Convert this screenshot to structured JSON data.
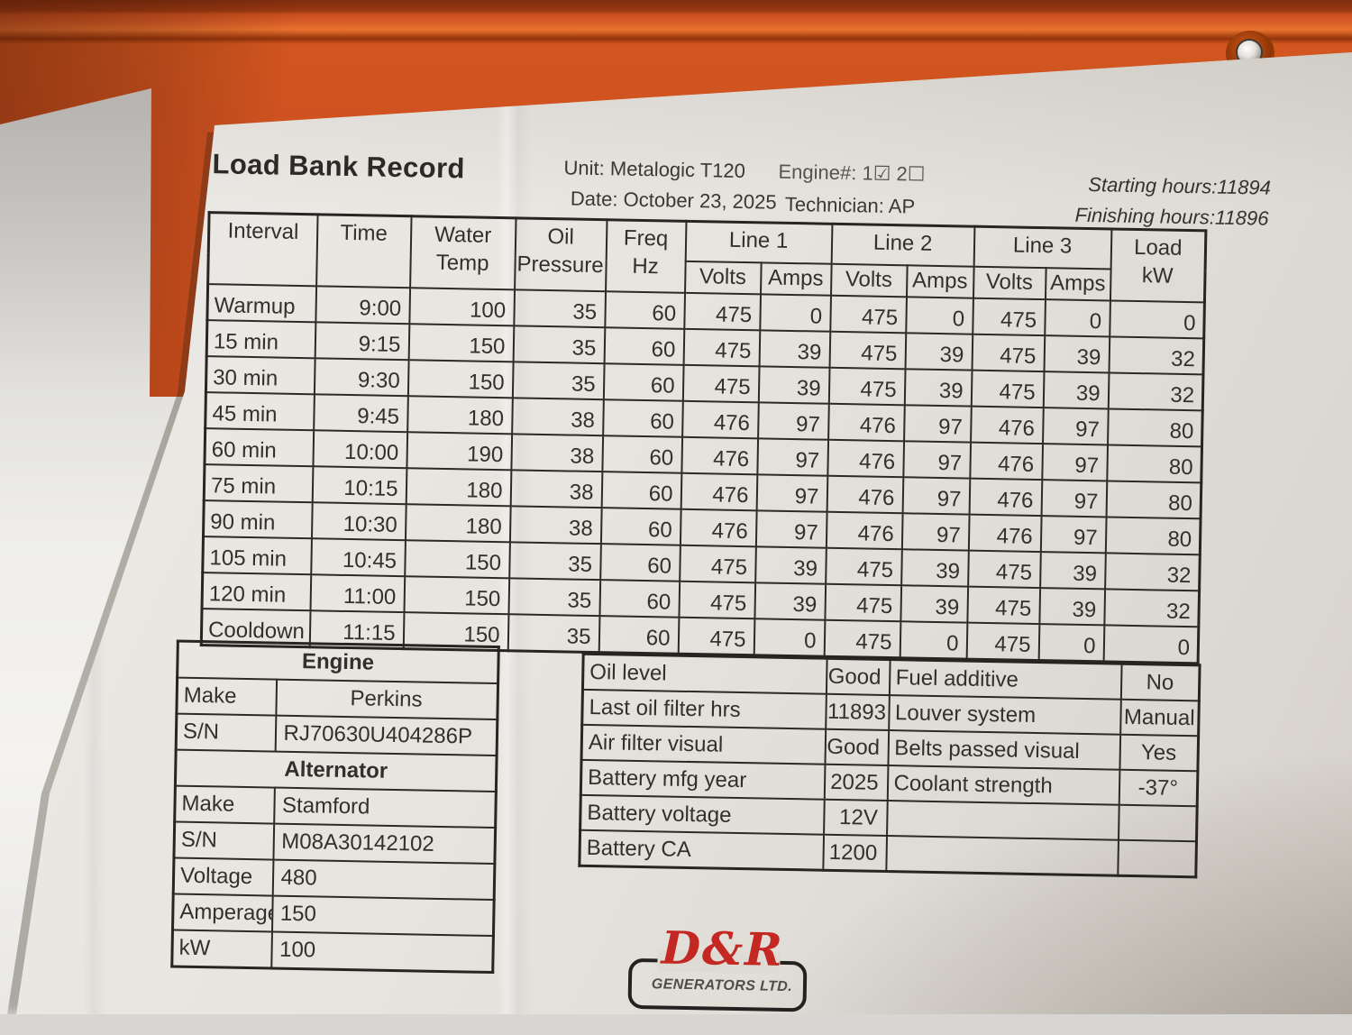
{
  "header": {
    "title": "Load Bank Record",
    "unit": {
      "label": "Unit:",
      "value": "Metalogic T120"
    },
    "engine_no": {
      "label": "Engine#:",
      "value": "1☑ 2☐"
    },
    "date": {
      "label": "Date:",
      "value": "October 23, 2025"
    },
    "technician": {
      "label": "Technician:",
      "value": "AP"
    },
    "starting_hours": "Starting hours:11894",
    "finishing_hours": "Finishing hours:11896"
  },
  "load_table": {
    "headers": {
      "interval": "Interval",
      "time": "Time",
      "water_temp": "Water\nTemp",
      "oil_pressure": "Oil\nPressure",
      "freq_hz": "Freq\nHz",
      "line1": "Line 1",
      "line2": "Line 2",
      "line3": "Line 3",
      "volts": "Volts",
      "amps": "Amps",
      "load_kw": "Load\nkW"
    },
    "rows": [
      [
        "Warmup",
        "9:00",
        "100",
        "35",
        "60",
        "475",
        "0",
        "475",
        "0",
        "475",
        "0",
        "0"
      ],
      [
        "15 min",
        "9:15",
        "150",
        "35",
        "60",
        "475",
        "39",
        "475",
        "39",
        "475",
        "39",
        "32"
      ],
      [
        "30 min",
        "9:30",
        "150",
        "35",
        "60",
        "475",
        "39",
        "475",
        "39",
        "475",
        "39",
        "32"
      ],
      [
        "45 min",
        "9:45",
        "180",
        "38",
        "60",
        "476",
        "97",
        "476",
        "97",
        "476",
        "97",
        "80"
      ],
      [
        "60 min",
        "10:00",
        "190",
        "38",
        "60",
        "476",
        "97",
        "476",
        "97",
        "476",
        "97",
        "80"
      ],
      [
        "75 min",
        "10:15",
        "180",
        "38",
        "60",
        "476",
        "97",
        "476",
        "97",
        "476",
        "97",
        "80"
      ],
      [
        "90 min",
        "10:30",
        "180",
        "38",
        "60",
        "476",
        "97",
        "476",
        "97",
        "476",
        "97",
        "80"
      ],
      [
        "105 min",
        "10:45",
        "150",
        "35",
        "60",
        "475",
        "39",
        "475",
        "39",
        "475",
        "39",
        "32"
      ],
      [
        "120 min",
        "11:00",
        "150",
        "35",
        "60",
        "475",
        "39",
        "475",
        "39",
        "475",
        "39",
        "32"
      ],
      [
        "Cooldown",
        "11:15",
        "150",
        "35",
        "60",
        "475",
        "0",
        "475",
        "0",
        "475",
        "0",
        "0"
      ]
    ]
  },
  "equipment_table": {
    "rows": [
      {
        "type": "section",
        "label": "Engine"
      },
      {
        "type": "kv",
        "key": "Make",
        "value": "Perkins",
        "center": true
      },
      {
        "type": "kv",
        "key": "S/N",
        "value": "RJ70630U404286P"
      },
      {
        "type": "section",
        "label": "Alternator"
      },
      {
        "type": "kv",
        "key": "Make",
        "value": "Stamford"
      },
      {
        "type": "kv",
        "key": "S/N",
        "value": "M08A30142102"
      },
      {
        "type": "kv",
        "key": "Voltage",
        "value": "480"
      },
      {
        "type": "kv",
        "key": "Amperage",
        "value": "150"
      },
      {
        "type": "kv",
        "key": "kW",
        "value": "100"
      }
    ]
  },
  "checklist_table": {
    "rows": [
      [
        "Oil level",
        "Good",
        "Fuel additive",
        "No"
      ],
      [
        "Last oil filter hrs",
        "11893",
        "Louver system",
        "Manual"
      ],
      [
        "Air filter visual",
        "Good",
        "Belts passed visual",
        "Yes"
      ],
      [
        "Battery mfg year",
        "2025",
        "Coolant strength",
        "-37°"
      ],
      [
        "Battery voltage",
        "12V",
        "",
        ""
      ],
      [
        "Battery CA",
        "1200",
        "",
        ""
      ]
    ]
  },
  "logo": {
    "name": "D&R",
    "subtitle": "GENERATORS LTD."
  },
  "colors": {
    "machine_orange": "#cf5220",
    "machine_orange_dark": "#8e3210",
    "paper": "#e5e2dd",
    "ink": "#32302c",
    "logo_red": "#c42823",
    "logo_gray": "#4f4d4a"
  }
}
